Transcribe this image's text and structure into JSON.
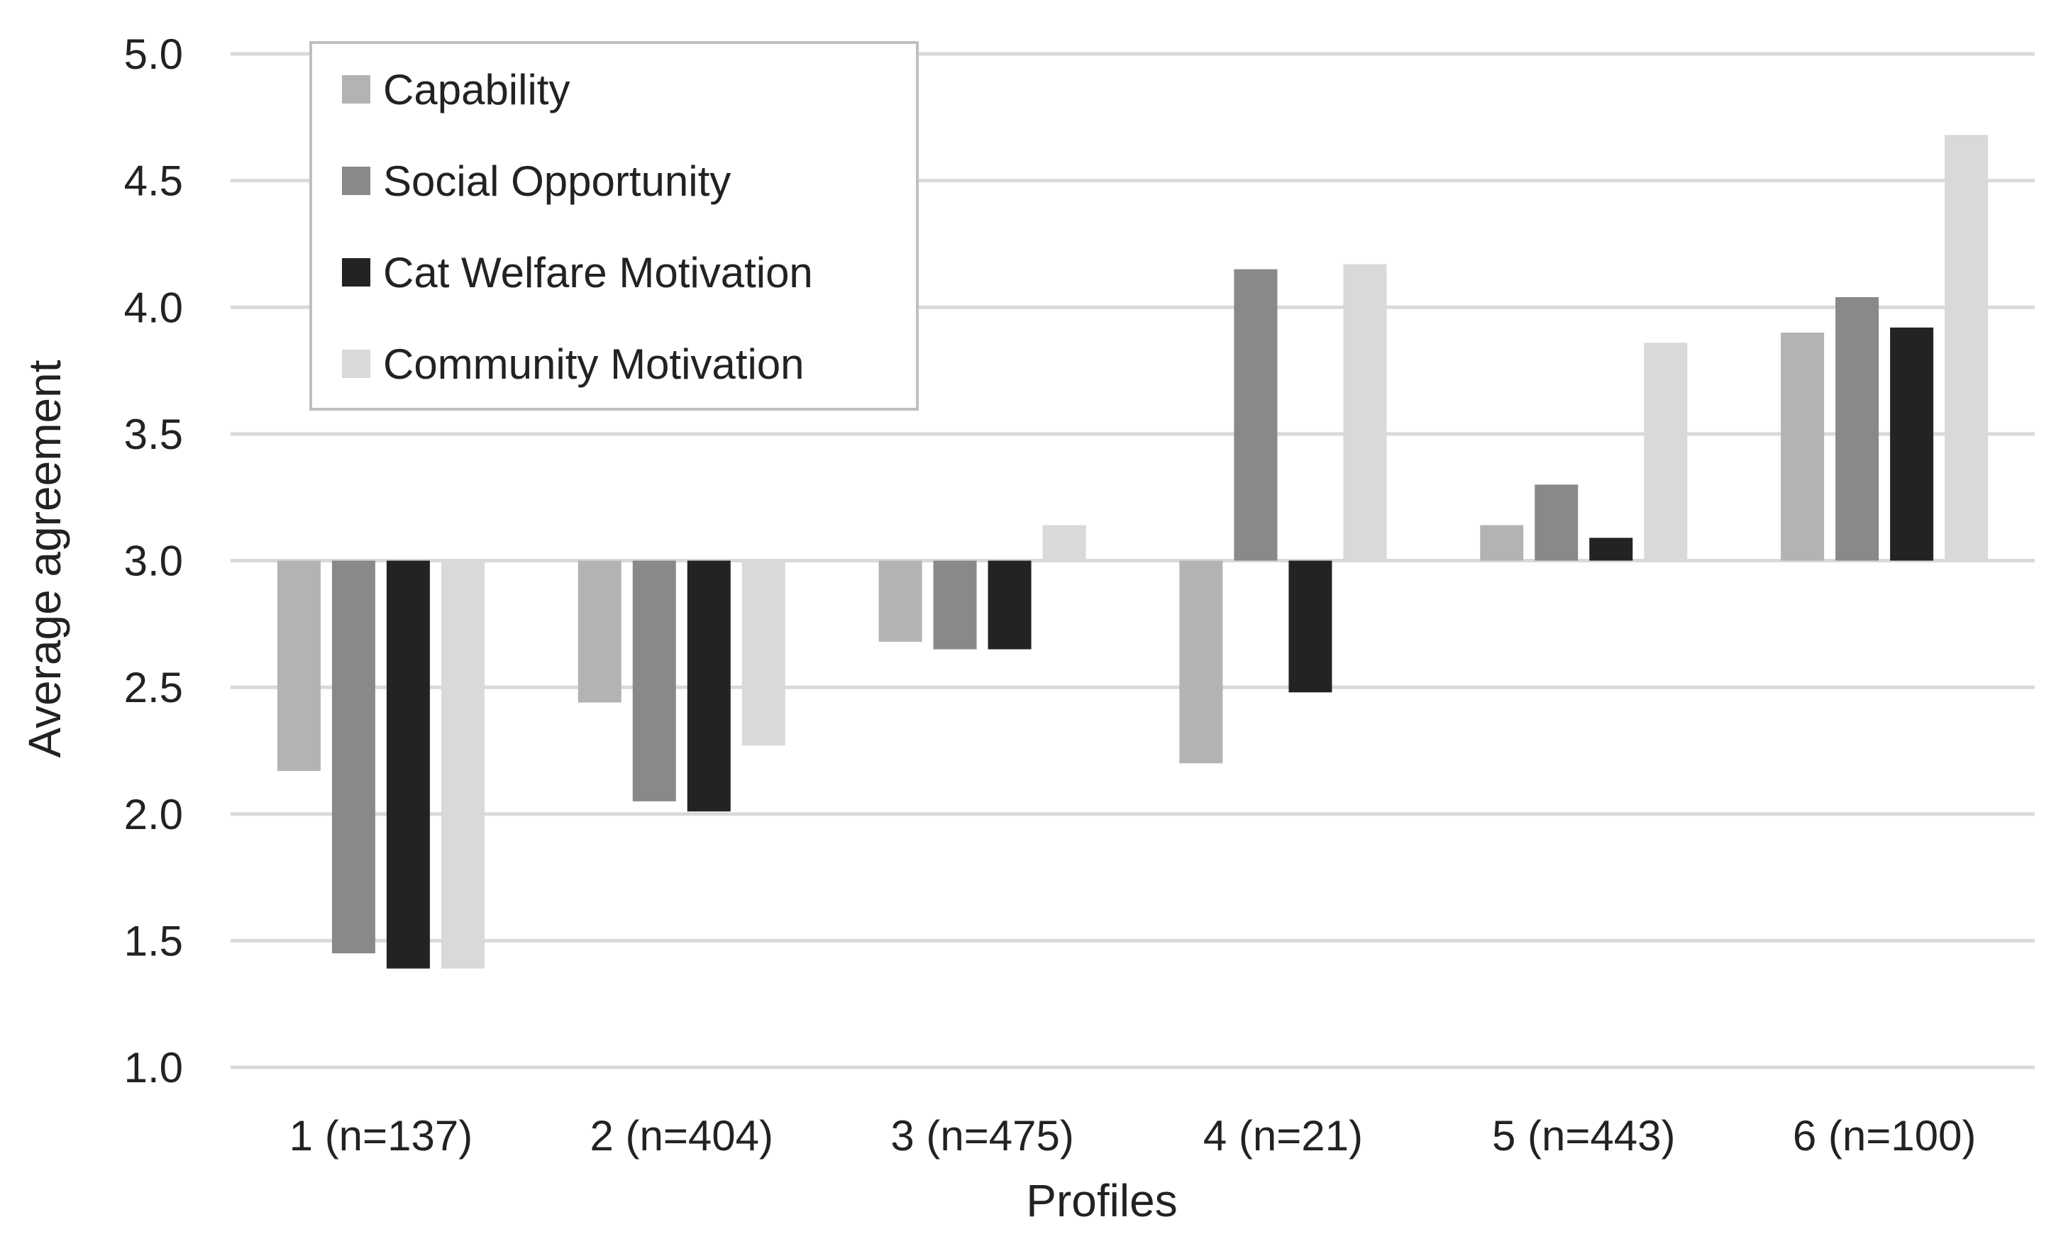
{
  "chart_data": {
    "type": "bar",
    "title": "",
    "xlabel": "Profiles",
    "ylabel": "Average agreement",
    "ylim": [
      1.0,
      5.0
    ],
    "yticks": [
      "1.0",
      "1.5",
      "2.0",
      "2.5",
      "3.0",
      "3.5",
      "4.0",
      "4.5",
      "5.0"
    ],
    "baseline": 3.0,
    "grid": true,
    "legend_position": "top-left",
    "categories": [
      "1 (n=137)",
      "2 (n=404)",
      "3 (n=475)",
      "4 (n=21)",
      "5 (n=443)",
      "6 (n=100)"
    ],
    "series": [
      {
        "name": "Capability",
        "color": "#b3b3b3",
        "values": [
          2.17,
          2.44,
          2.68,
          2.2,
          3.14,
          3.9
        ]
      },
      {
        "name": "Social Opportunity",
        "color": "#898989",
        "values": [
          1.45,
          2.05,
          2.65,
          4.15,
          3.3,
          4.04
        ]
      },
      {
        "name": "Cat Welfare Motivation",
        "color": "#232323",
        "values": [
          1.39,
          2.01,
          2.65,
          2.48,
          3.09,
          3.92
        ]
      },
      {
        "name": "Community Motivation",
        "color": "#d9d9d9",
        "values": [
          1.39,
          2.27,
          3.14,
          4.17,
          3.86,
          4.68
        ]
      }
    ]
  }
}
